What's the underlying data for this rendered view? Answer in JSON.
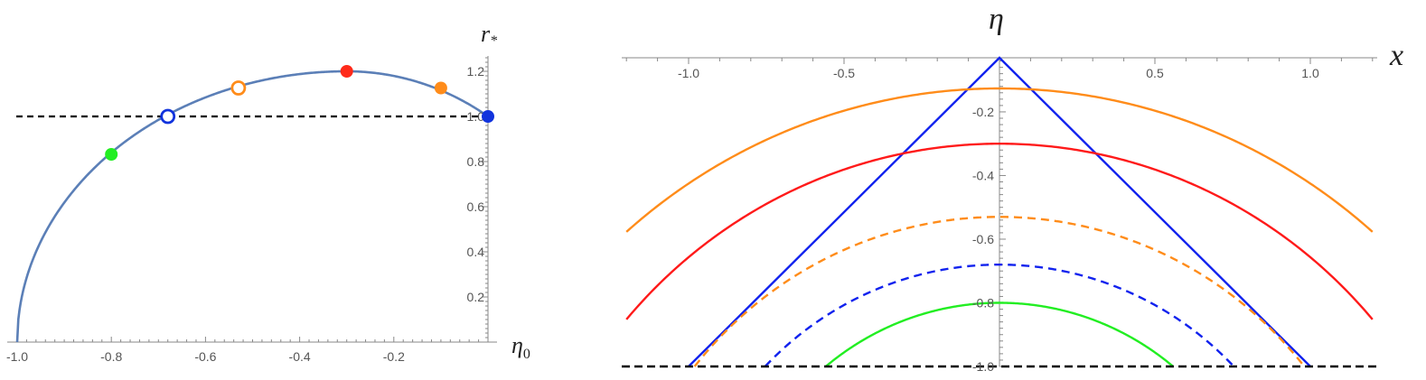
{
  "chart_data": [
    {
      "type": "line",
      "xlabel": "η",
      "xlabel_sub": "0",
      "ylabel": "r",
      "ylabel_sub": "*",
      "xlim": [
        -1.0,
        0.0
      ],
      "ylim": [
        0.0,
        1.25
      ],
      "x_ticks": [
        "-1.0",
        "-0.8",
        "-0.6",
        "-0.4",
        "-0.2"
      ],
      "y_ticks": [
        "0.2",
        "0.4",
        "0.6",
        "0.8",
        "1.0",
        "1.2"
      ],
      "x_tick_values": [
        -1.0,
        -0.8,
        -0.6,
        -0.4,
        -0.2
      ],
      "y_tick_values": [
        0.2,
        0.4,
        0.6,
        0.8,
        1.0,
        1.2
      ],
      "curve_color": "#5b7fb7",
      "reference_line": {
        "y": 1.0,
        "style": "dashed",
        "color": "#000000"
      },
      "markers": [
        {
          "x": -0.8,
          "y": 0.832,
          "color": "#22ee22",
          "filled": true
        },
        {
          "x": -0.68,
          "y": 1.0,
          "color": "#1133dd",
          "filled": false
        },
        {
          "x": -0.53,
          "y": 1.126,
          "color": "#ff8c1a",
          "filled": false
        },
        {
          "x": -0.3,
          "y": 1.2,
          "color": "#ff2a1a",
          "filled": true
        },
        {
          "x": -0.1,
          "y": 1.126,
          "color": "#ff8c1a",
          "filled": true
        },
        {
          "x": 0.0,
          "y": 1.0,
          "color": "#1133dd",
          "filled": true
        }
      ]
    },
    {
      "type": "line",
      "xlabel": "x",
      "ylabel": "η",
      "xlim": [
        -1.2,
        1.2
      ],
      "ylim": [
        -1.0,
        -0.03
      ],
      "x_ticks": [
        "-1.0",
        "-0.5",
        "0.5",
        "1.0"
      ],
      "x_tick_values": [
        -1.0,
        -0.5,
        0.5,
        1.0
      ],
      "y_ticks": [
        "-0.2",
        "-0.4",
        "-0.6",
        "-0.8",
        "-1.0"
      ],
      "y_tick_values": [
        -0.2,
        -0.4,
        -0.6,
        -0.8,
        -1.0
      ],
      "reference_line": {
        "y": -1.0,
        "style": "dashed",
        "color": "#000000"
      },
      "series": [
        {
          "kind": "triangle",
          "peak": -0.03,
          "half_width": 1.0,
          "color": "#1122ee",
          "dashed": false
        },
        {
          "kind": "arc",
          "peak": -0.1264,
          "color": "#ff8c1a",
          "dashed": false
        },
        {
          "kind": "arc",
          "peak": -0.3,
          "color": "#ff1a1a",
          "dashed": false
        },
        {
          "kind": "arc",
          "peak": -0.53,
          "color": "#ff8c1a",
          "dashed": true
        },
        {
          "kind": "arc",
          "peak": -0.68,
          "color": "#1122ee",
          "dashed": true
        },
        {
          "kind": "arc",
          "peak": -0.8,
          "color": "#22ee22",
          "dashed": false
        }
      ]
    }
  ]
}
